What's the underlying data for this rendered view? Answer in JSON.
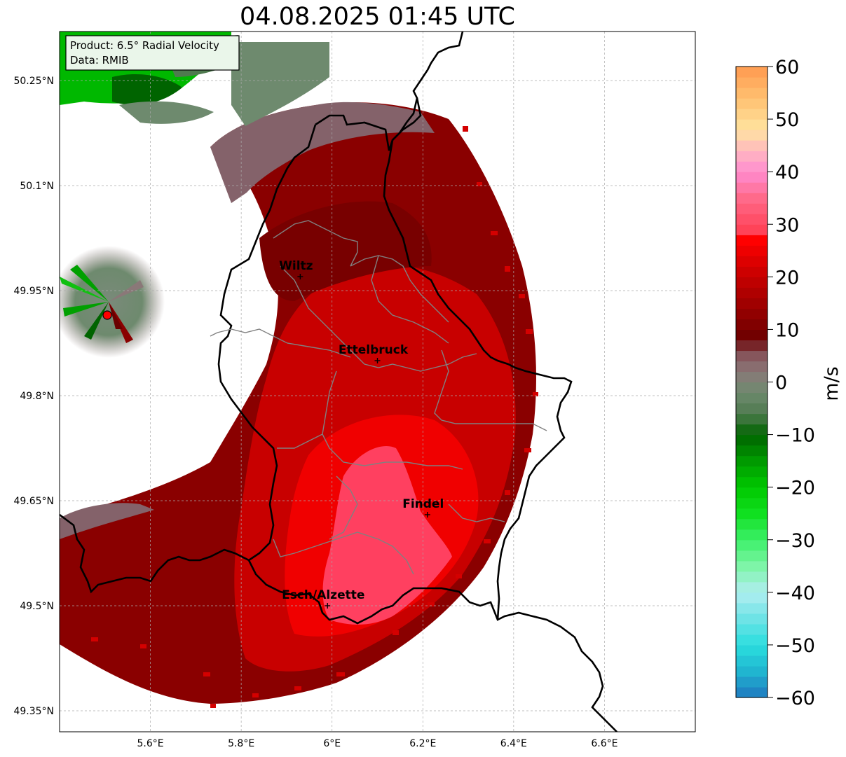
{
  "title": "04.08.2025 01:45 UTC",
  "info": {
    "product": "Product: 6.5° Radial Velocity",
    "data": "Data: RMIB"
  },
  "axes": {
    "lat_labels": [
      "50.25°N",
      "50.1°N",
      "49.95°N",
      "49.8°N",
      "49.65°N",
      "49.5°N",
      "49.35°N"
    ],
    "lon_labels": [
      "5.6°E",
      "5.8°E",
      "6°E",
      "6.2°E",
      "6.4°E",
      "6.6°E"
    ]
  },
  "cities": [
    {
      "name": "Wiltz",
      "lon": 5.93,
      "lat": 49.97
    },
    {
      "name": "Ettelbruck",
      "lon": 6.1,
      "lat": 49.85
    },
    {
      "name": "Findel",
      "lon": 6.21,
      "lat": 49.63
    },
    {
      "name": "Esch/Alzette",
      "lon": 5.99,
      "lat": 49.5
    }
  ],
  "radar_site": {
    "lon": 5.505,
    "lat": 49.915
  },
  "colorbar": {
    "label": "m/s",
    "min": -60,
    "max": 60,
    "ticks": [
      "60",
      "50",
      "40",
      "30",
      "20",
      "10",
      "0",
      "−10",
      "−20",
      "−30",
      "−40",
      "−50",
      "−60"
    ],
    "stops": [
      {
        "v": -60,
        "c": "#1f78c0"
      },
      {
        "v": -55,
        "c": "#20b5d0"
      },
      {
        "v": -50,
        "c": "#2adede"
      },
      {
        "v": -45,
        "c": "#6ee3e6"
      },
      {
        "v": -40,
        "c": "#b0eef0"
      },
      {
        "v": -35,
        "c": "#7ef5a8"
      },
      {
        "v": -30,
        "c": "#3cf068"
      },
      {
        "v": -25,
        "c": "#10e020"
      },
      {
        "v": -20,
        "c": "#00c800"
      },
      {
        "v": -15,
        "c": "#009a00"
      },
      {
        "v": -10,
        "c": "#006400"
      },
      {
        "v": -6,
        "c": "#4f7a4f"
      },
      {
        "v": -2,
        "c": "#6e8a6e"
      },
      {
        "v": 2,
        "c": "#8a7878"
      },
      {
        "v": 6,
        "c": "#844a52"
      },
      {
        "v": 8,
        "c": "#6a0000"
      },
      {
        "v": 15,
        "c": "#a00000"
      },
      {
        "v": 22,
        "c": "#d40000"
      },
      {
        "v": 27,
        "c": "#ff0000"
      },
      {
        "v": 28,
        "c": "#ff3c50"
      },
      {
        "v": 35,
        "c": "#ff6a8a"
      },
      {
        "v": 40,
        "c": "#ff8cd0"
      },
      {
        "v": 44,
        "c": "#ffb8c0"
      },
      {
        "v": 48,
        "c": "#ffe4a0"
      },
      {
        "v": 54,
        "c": "#ffc070"
      },
      {
        "v": 60,
        "c": "#ff9a50"
      }
    ]
  }
}
